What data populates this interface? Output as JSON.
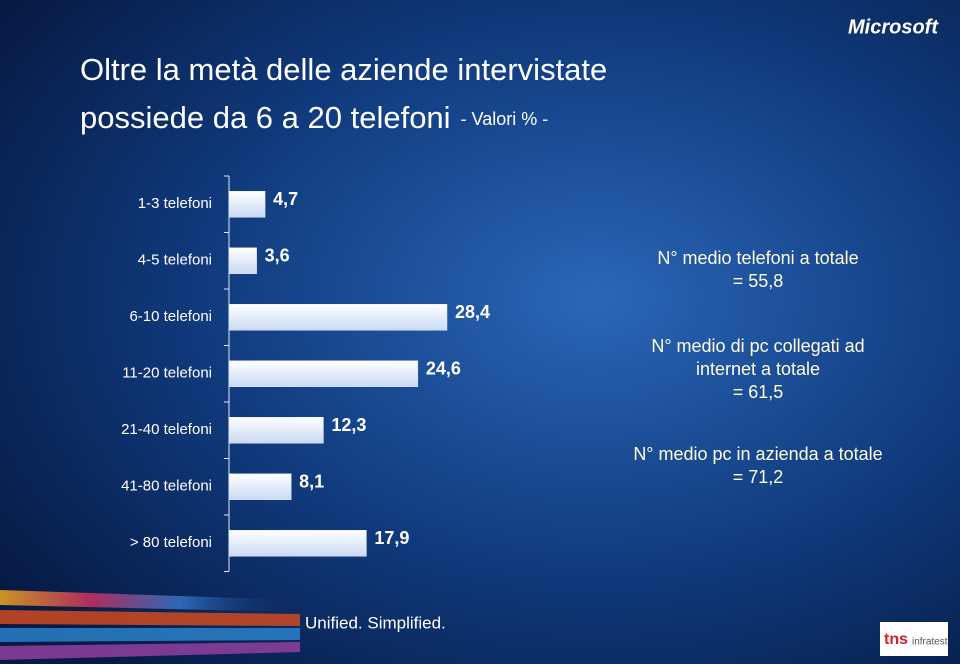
{
  "chart_data": {
    "type": "bar",
    "orientation": "horizontal",
    "title": [
      "Oltre la metà delle aziende intervistate",
      "possiede da 6 a 20 telefoni"
    ],
    "subtitle": "- Valori % -",
    "categories": [
      "1-3 telefoni",
      "4-5 telefoni",
      "6-10 telefoni",
      "11-20 telefoni",
      "21-40 telefoni",
      "41-80 telefoni",
      "> 80 telefoni"
    ],
    "values": [
      4.7,
      3.6,
      28.4,
      24.6,
      12.3,
      8.1,
      17.9
    ],
    "value_labels": [
      "4,7",
      "3,6",
      "28,4",
      "24,6",
      "12,3",
      "8,1",
      "17,9"
    ],
    "color": "#dfe9fb",
    "annotations": [
      [
        "N° medio telefoni a totale",
        "= 55,8"
      ],
      [
        "N° medio di pc collegati ad",
        "internet a totale",
        "= 61,5"
      ],
      [
        "N° medio pc in azienda a totale",
        "= 71,2"
      ]
    ]
  },
  "branding": {
    "logo": "Microsoft",
    "tagline": "Unified. Simplified.",
    "partner": [
      "tns",
      "infratest"
    ]
  }
}
